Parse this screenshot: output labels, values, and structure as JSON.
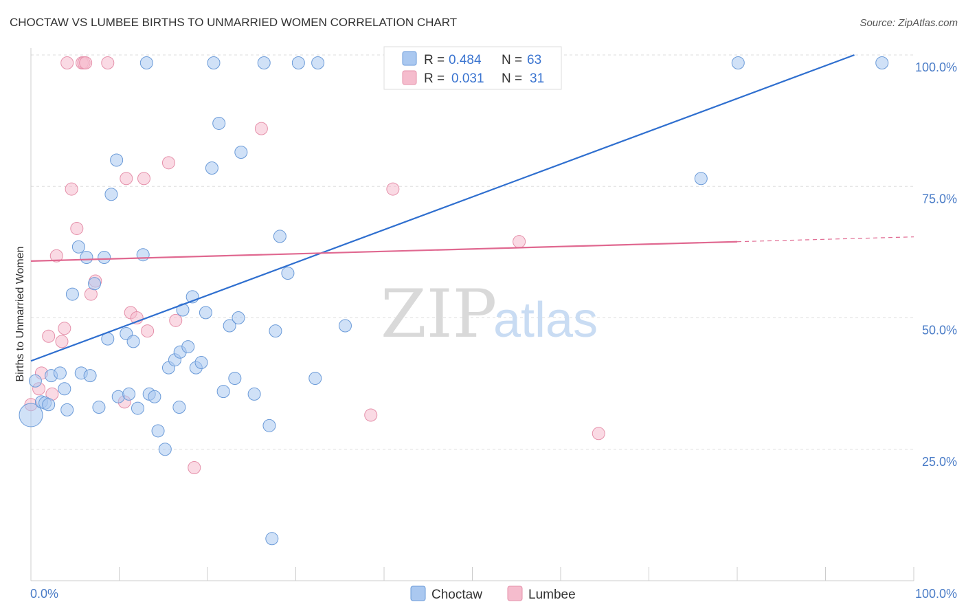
{
  "title": "CHOCTAW VS LUMBEE BIRTHS TO UNMARRIED WOMEN CORRELATION CHART",
  "source": "Source: ZipAtlas.com",
  "watermark": {
    "zip": "ZIP",
    "atlas": "atlas"
  },
  "colors": {
    "choctaw_fill": "#aac8f0",
    "choctaw_stroke": "#6a9ad8",
    "choctaw_line": "#2f6fcf",
    "lumbee_fill": "#f5bccd",
    "lumbee_stroke": "#e590aa",
    "lumbee_line": "#e06890",
    "grid": "#dddddd",
    "axis_text": "#4a7cc7"
  },
  "legend": {
    "rows": [
      {
        "r_label": "R =",
        "r_value": "0.484",
        "n_label": "N =",
        "n_value": "63"
      },
      {
        "r_label": "R =",
        "r_value": "0.031",
        "n_label": "N =",
        "n_value": "31"
      }
    ]
  },
  "bottom_legend": [
    "Choctaw",
    "Lumbee"
  ],
  "chart_data": {
    "type": "scatter",
    "title": "CHOCTAW VS LUMBEE BIRTHS TO UNMARRIED WOMEN CORRELATION CHART",
    "xlabel": "",
    "ylabel": "Births to Unmarried Women",
    "xlim": [
      0,
      100
    ],
    "ylim": [
      0,
      100
    ],
    "x_tick_labels": [
      "0.0%",
      "100.0%"
    ],
    "y_tick_labels": [
      "25.0%",
      "50.0%",
      "75.0%",
      "100.0%"
    ],
    "y_ticks": [
      25,
      50,
      75,
      100
    ],
    "series": [
      {
        "name": "Choctaw",
        "R": 0.484,
        "N": 63,
        "trend": {
          "x": [
            0,
            100
          ],
          "y": [
            41.8,
            104.2
          ],
          "dashed_from": null
        },
        "points": [
          [
            0.0,
            31.5,
            3
          ],
          [
            0.5,
            38.0,
            1
          ],
          [
            1.2,
            34.0,
            1
          ],
          [
            1.6,
            33.8,
            1
          ],
          [
            2.0,
            33.5,
            1
          ],
          [
            2.3,
            39.0,
            1
          ],
          [
            3.3,
            39.5,
            1
          ],
          [
            3.8,
            36.5,
            1
          ],
          [
            4.1,
            32.5,
            1
          ],
          [
            4.7,
            54.5,
            1
          ],
          [
            5.4,
            63.5,
            1
          ],
          [
            5.7,
            39.5,
            1
          ],
          [
            6.3,
            61.5,
            1
          ],
          [
            6.7,
            39.0,
            1
          ],
          [
            7.2,
            56.5,
            1
          ],
          [
            7.7,
            33.0,
            1
          ],
          [
            8.3,
            61.5,
            1
          ],
          [
            8.7,
            46.0,
            1
          ],
          [
            9.1,
            73.5,
            1
          ],
          [
            9.7,
            80.0,
            1
          ],
          [
            9.9,
            35.0,
            1
          ],
          [
            10.8,
            47.0,
            1
          ],
          [
            11.1,
            35.5,
            1
          ],
          [
            11.6,
            45.5,
            1
          ],
          [
            12.1,
            32.8,
            1
          ],
          [
            12.7,
            62.0,
            1
          ],
          [
            13.1,
            98.5,
            1
          ],
          [
            13.4,
            35.5,
            1
          ],
          [
            14.0,
            35.0,
            1
          ],
          [
            14.4,
            28.5,
            1
          ],
          [
            15.2,
            25.0,
            1
          ],
          [
            15.6,
            40.5,
            1
          ],
          [
            16.3,
            42.0,
            1
          ],
          [
            16.8,
            33.0,
            1
          ],
          [
            16.9,
            43.5,
            1
          ],
          [
            17.2,
            51.5,
            1
          ],
          [
            17.8,
            44.5,
            1
          ],
          [
            18.3,
            54.0,
            1
          ],
          [
            18.7,
            40.5,
            1
          ],
          [
            19.3,
            41.5,
            1
          ],
          [
            19.8,
            51.0,
            1
          ],
          [
            20.5,
            78.5,
            1
          ],
          [
            20.7,
            98.5,
            1
          ],
          [
            21.3,
            87.0,
            1
          ],
          [
            21.8,
            36.0,
            1
          ],
          [
            22.5,
            48.5,
            1
          ],
          [
            23.1,
            38.5,
            1
          ],
          [
            23.5,
            50.0,
            1
          ],
          [
            23.8,
            81.5,
            1
          ],
          [
            25.3,
            35.5,
            1
          ],
          [
            26.4,
            98.5,
            1
          ],
          [
            27.0,
            29.5,
            1
          ],
          [
            27.3,
            8.0,
            1
          ],
          [
            27.7,
            47.5,
            1
          ],
          [
            28.2,
            65.5,
            1
          ],
          [
            29.1,
            58.5,
            1
          ],
          [
            30.3,
            98.5,
            1
          ],
          [
            32.2,
            38.5,
            1
          ],
          [
            32.5,
            98.5,
            1
          ],
          [
            35.6,
            48.5,
            1
          ],
          [
            75.9,
            76.5,
            1
          ],
          [
            80.1,
            98.5,
            1
          ],
          [
            96.4,
            98.5,
            1
          ]
        ]
      },
      {
        "name": "Lumbee",
        "R": 0.031,
        "N": 31,
        "trend": {
          "x": [
            0,
            100
          ],
          "y": [
            60.8,
            65.4
          ],
          "dashed_from": 80
        },
        "points": [
          [
            0.0,
            33.5,
            1
          ],
          [
            0.9,
            36.5,
            1
          ],
          [
            1.2,
            39.5,
            1
          ],
          [
            2.0,
            46.5,
            1
          ],
          [
            2.4,
            35.5,
            1
          ],
          [
            2.9,
            61.8,
            1
          ],
          [
            3.5,
            45.5,
            1
          ],
          [
            3.8,
            48.0,
            1
          ],
          [
            4.1,
            98.5,
            1
          ],
          [
            4.6,
            74.5,
            1
          ],
          [
            5.2,
            67.0,
            1
          ],
          [
            5.8,
            98.5,
            1
          ],
          [
            6.0,
            98.5,
            1
          ],
          [
            6.2,
            98.5,
            1
          ],
          [
            6.8,
            54.5,
            1
          ],
          [
            7.3,
            57.0,
            1
          ],
          [
            8.7,
            98.5,
            1
          ],
          [
            10.6,
            34.0,
            1
          ],
          [
            10.8,
            76.5,
            1
          ],
          [
            11.3,
            51.0,
            1
          ],
          [
            12.0,
            50.0,
            1
          ],
          [
            12.8,
            76.5,
            1
          ],
          [
            13.2,
            47.5,
            1
          ],
          [
            15.6,
            79.5,
            1
          ],
          [
            16.4,
            49.5,
            1
          ],
          [
            18.5,
            21.5,
            1
          ],
          [
            26.1,
            86.0,
            1
          ],
          [
            38.5,
            31.5,
            1
          ],
          [
            41.0,
            74.5,
            1
          ],
          [
            55.3,
            64.5,
            1
          ],
          [
            64.3,
            28.0,
            1
          ]
        ]
      }
    ],
    "grid": true,
    "legend_position": "top-center"
  }
}
